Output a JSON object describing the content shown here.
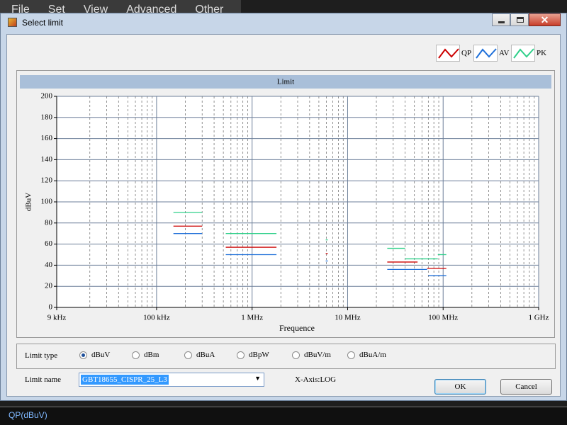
{
  "menu": [
    "File",
    "Set",
    "View",
    "Advanced",
    "Other"
  ],
  "window": {
    "title": "Select limit"
  },
  "chart_data": {
    "type": "segments",
    "title": "Limit",
    "x_label": "Frequence",
    "y_label": "dBuV",
    "x_log": true,
    "grid": true,
    "xlim": [
      9000,
      1000000000
    ],
    "xticks": [
      {
        "value": 9000,
        "label": "9 kHz"
      },
      {
        "value": 100000,
        "label": "100 kHz"
      },
      {
        "value": 1000000,
        "label": "1 MHz"
      },
      {
        "value": 10000000,
        "label": "10 MHz"
      },
      {
        "value": 100000000,
        "label": "100 MHz"
      },
      {
        "value": 1000000000,
        "label": "1 GHz"
      }
    ],
    "ylim": [
      0,
      200
    ],
    "yticks": [
      0,
      20,
      40,
      60,
      80,
      100,
      120,
      140,
      160,
      180,
      200
    ],
    "series": [
      {
        "name": "QP",
        "color": "#cc0000",
        "segments": [
          {
            "x": [
              150000,
              300000
            ],
            "value": 77
          },
          {
            "x": [
              530000,
              1800000
            ],
            "value": 57
          },
          {
            "x": [
              5900000,
              6200000
            ],
            "value": 51
          },
          {
            "x": [
              26000000,
              54000000
            ],
            "value": 43
          },
          {
            "x": [
              68000000,
              108000000
            ],
            "value": 37
          }
        ]
      },
      {
        "name": "AV",
        "color": "#1e6fd9",
        "segments": [
          {
            "x": [
              150000,
              300000
            ],
            "value": 70
          },
          {
            "x": [
              530000,
              1800000
            ],
            "value": 50
          },
          {
            "x": [
              5900000,
              6200000
            ],
            "value": 44
          },
          {
            "x": [
              26000000,
              68000000
            ],
            "value": 36
          },
          {
            "x": [
              70000000,
              108000000
            ],
            "value": 30
          }
        ]
      },
      {
        "name": "PK",
        "color": "#2fd08a",
        "segments": [
          {
            "x": [
              150000,
              300000
            ],
            "value": 90
          },
          {
            "x": [
              530000,
              1800000
            ],
            "value": 70
          },
          {
            "x": [
              5900000,
              6200000
            ],
            "value": 64
          },
          {
            "x": [
              26000000,
              40000000
            ],
            "value": 56
          },
          {
            "x": [
              40000000,
              88000000
            ],
            "value": 46
          },
          {
            "x": [
              88000000,
              108000000
            ],
            "value": 50
          }
        ]
      }
    ]
  },
  "controls": {
    "limit_type": {
      "label": "Limit type",
      "options": [
        {
          "label": "dBuV",
          "checked": true
        },
        {
          "label": "dBm",
          "checked": false
        },
        {
          "label": "dBuA",
          "checked": false
        },
        {
          "label": "dBpW",
          "checked": false
        },
        {
          "label": "dBuV/m",
          "checked": false
        },
        {
          "label": "dBuA/m",
          "checked": false
        }
      ]
    },
    "limit_name": {
      "label": "Limit name",
      "value": "GBT18655_CISPR_25_L3"
    },
    "axis_info": "X-Axis:LOG",
    "ok": "OK",
    "cancel": "Cancel"
  },
  "status": "QP(dBuV)"
}
